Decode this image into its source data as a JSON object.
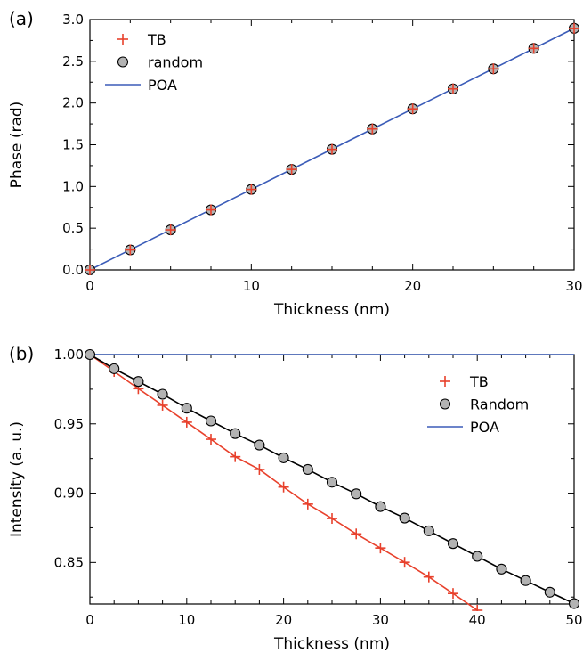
{
  "chart_data": [
    {
      "type": "scatter",
      "panel_label": "(a)",
      "xlabel": "Thickness (nm)",
      "ylabel": "Phase (rad)",
      "xlim": [
        0,
        30
      ],
      "ylim": [
        0,
        3.0
      ],
      "xticks": [
        0,
        10,
        20,
        30
      ],
      "xtick_labels": [
        "0",
        "10",
        "20",
        "30"
      ],
      "yticks": [
        0,
        0.5,
        1.0,
        1.5,
        2.0,
        2.5,
        3.0
      ],
      "ytick_labels": [
        "0.0",
        "0.5",
        "1.0",
        "1.5",
        "2.0",
        "2.5",
        "3.0"
      ],
      "grid": false,
      "legend_position": "top-left",
      "series": [
        {
          "name": "TB",
          "kind": "marker",
          "marker": "plus",
          "color": "#e8412c",
          "connect": false,
          "x": [
            0,
            2.5,
            5,
            7.5,
            10,
            12.5,
            15,
            17.5,
            20,
            22.5,
            25,
            27.5,
            30
          ],
          "y": [
            0,
            0.24,
            0.48,
            0.72,
            0.965,
            1.205,
            1.445,
            1.69,
            1.93,
            2.17,
            2.41,
            2.655,
            2.895
          ]
        },
        {
          "name": "random",
          "kind": "marker",
          "marker": "circle",
          "color": "#b3b3b3",
          "connect": false,
          "x": [
            0,
            2.5,
            5,
            7.5,
            10,
            12.5,
            15,
            17.5,
            20,
            22.5,
            25,
            27.5,
            30
          ],
          "y": [
            0,
            0.24,
            0.48,
            0.72,
            0.965,
            1.205,
            1.445,
            1.69,
            1.93,
            2.17,
            2.41,
            2.655,
            2.895
          ]
        },
        {
          "name": "POA",
          "kind": "line",
          "color": "#3b5cb8",
          "x": [
            0,
            30
          ],
          "y": [
            0,
            2.895
          ]
        }
      ]
    },
    {
      "type": "line",
      "panel_label": "(b)",
      "xlabel": "Thickness (nm)",
      "ylabel": "Intensity (a. u.)",
      "xlim": [
        0,
        50
      ],
      "ylim": [
        0.82,
        1.0
      ],
      "xticks": [
        0,
        10,
        20,
        30,
        40,
        50
      ],
      "xtick_labels": [
        "0",
        "10",
        "20",
        "30",
        "40",
        "50"
      ],
      "yticks": [
        0.85,
        0.9,
        0.95,
        1.0
      ],
      "ytick_labels": [
        "0.85",
        "0.90",
        "0.95",
        "1.00"
      ],
      "grid": false,
      "legend_position": "top-right",
      "series": [
        {
          "name": "TB",
          "kind": "marker",
          "marker": "plus",
          "color": "#e8412c",
          "connect": true,
          "x": [
            0,
            2.5,
            5,
            7.5,
            10,
            12.5,
            15,
            17.5,
            20,
            22.5,
            25,
            27.5,
            30,
            32.5,
            35,
            37.5,
            40
          ],
          "y": [
            1.0,
            0.9878,
            0.9754,
            0.9634,
            0.9512,
            0.9389,
            0.9263,
            0.9171,
            0.9044,
            0.8921,
            0.8817,
            0.8706,
            0.8604,
            0.8501,
            0.8395,
            0.8276,
            0.8155
          ]
        },
        {
          "name": "Random",
          "kind": "marker",
          "marker": "circle",
          "color": "#b3b3b3",
          "line_color": "#000000",
          "connect": true,
          "x": [
            0,
            2.5,
            5,
            7.5,
            10,
            12.5,
            15,
            17.5,
            20,
            22.5,
            25,
            27.5,
            30,
            32.5,
            35,
            37.5,
            40,
            42.5,
            45,
            47.5,
            50
          ],
          "y": [
            1.0,
            0.9898,
            0.9806,
            0.9714,
            0.9613,
            0.9521,
            0.943,
            0.9347,
            0.9255,
            0.9171,
            0.9079,
            0.8995,
            0.8903,
            0.882,
            0.8728,
            0.8636,
            0.8544,
            0.8452,
            0.8369,
            0.8285,
            0.8203
          ]
        },
        {
          "name": "POA",
          "kind": "line",
          "color": "#3b5cb8",
          "x": [
            0,
            50
          ],
          "y": [
            1.0,
            1.0
          ]
        }
      ]
    }
  ]
}
